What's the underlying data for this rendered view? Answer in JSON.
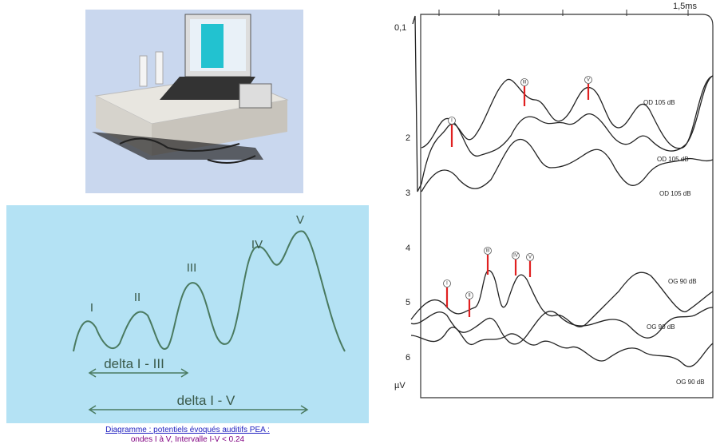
{
  "diagram": {
    "peaks": [
      "I",
      "II",
      "III",
      "IV",
      "V"
    ],
    "intervals": [
      "delta  I - III",
      "delta  I - V"
    ]
  },
  "caption": {
    "link": "Diagramme : potentiels évoqués auditifs PEA :",
    "text": "ondes I à V, Intervalle I-V < 0.24"
  },
  "recording": {
    "time_label": "1,5ms",
    "y_labels": [
      "0,1",
      "2",
      "3",
      "4",
      "5",
      "6"
    ],
    "unit": "µV",
    "trace_labels": [
      "OD 105 dB",
      "OD 105 dB",
      "OD 105 dB",
      "OG 90 dB",
      "OG 90 dB",
      "OG 90 dB"
    ],
    "markers_top": [
      "I",
      "III",
      "V"
    ],
    "markers_bottom": [
      "I",
      "II",
      "III",
      "IV",
      "V"
    ]
  }
}
